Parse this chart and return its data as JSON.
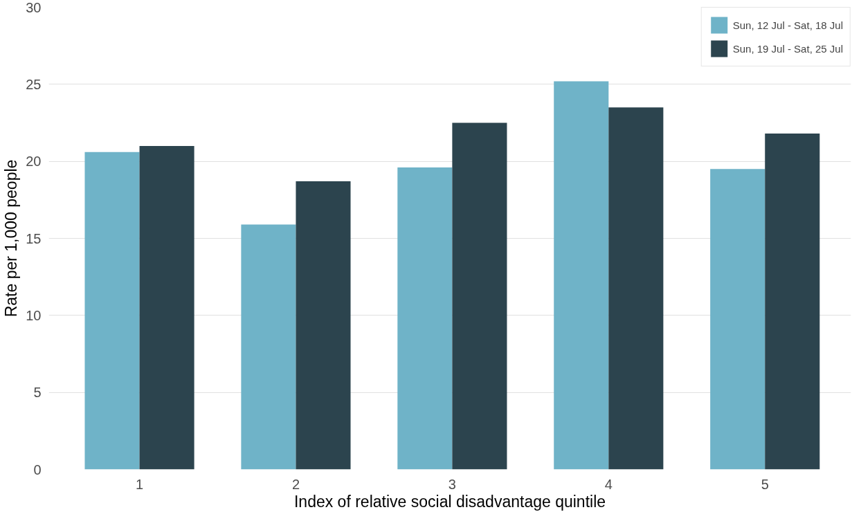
{
  "chart_data": {
    "type": "bar",
    "xlabel": "Index of relative social disadvantage quintile",
    "ylabel": "Rate per 1,000 people",
    "categories": [
      "1",
      "2",
      "3",
      "4",
      "5"
    ],
    "series": [
      {
        "name": "Sun, 12 Jul - Sat, 18 Jul",
        "color": "#6fb3c8",
        "values": [
          20.6,
          15.9,
          19.6,
          25.2,
          19.5
        ]
      },
      {
        "name": "Sun, 19 Jul - Sat, 25 Jul",
        "color": "#2c444e",
        "values": [
          21.0,
          18.7,
          22.5,
          23.5,
          21.8
        ]
      }
    ],
    "ylim": [
      0,
      30
    ],
    "yticks": [
      0,
      5,
      10,
      15,
      20,
      25,
      30
    ],
    "grid": "y",
    "legend": "top right"
  }
}
